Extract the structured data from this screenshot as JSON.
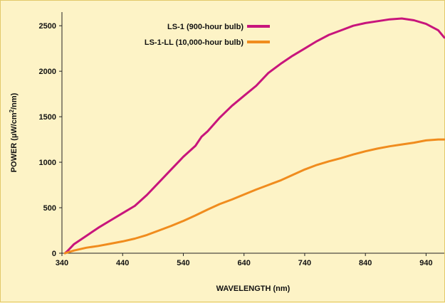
{
  "chart_data": {
    "type": "line",
    "xlabel": "WAVELENGTH (nm)",
    "ylabel": {
      "prefix": "POWER (µW/cm",
      "sup": "2",
      "suffix": "/nm)"
    },
    "xlim": [
      340,
      970
    ],
    "ylim": [
      0,
      2650
    ],
    "x_ticks": [
      340,
      440,
      540,
      640,
      740,
      840,
      940
    ],
    "y_ticks": [
      0,
      500,
      1000,
      1500,
      2000,
      2500
    ],
    "grid": false,
    "legend_position": "top-center",
    "series": [
      {
        "name": "LS-1 (900-hour bulb)",
        "color": "#c8157c",
        "x": [
          345,
          350,
          360,
          380,
          400,
          420,
          440,
          460,
          480,
          500,
          520,
          540,
          560,
          570,
          580,
          600,
          620,
          640,
          660,
          680,
          700,
          720,
          740,
          760,
          780,
          800,
          820,
          840,
          860,
          880,
          900,
          920,
          940,
          960,
          970
        ],
        "y": [
          0,
          30,
          100,
          190,
          280,
          360,
          440,
          520,
          640,
          780,
          920,
          1060,
          1180,
          1280,
          1340,
          1490,
          1620,
          1730,
          1840,
          1980,
          2080,
          2170,
          2250,
          2330,
          2400,
          2450,
          2500,
          2530,
          2550,
          2570,
          2580,
          2560,
          2520,
          2450,
          2370
        ]
      },
      {
        "name": "LS-1-LL (10,000-hour bulb)",
        "color": "#f08c1e",
        "x": [
          345,
          350,
          360,
          380,
          400,
          420,
          440,
          460,
          480,
          500,
          520,
          540,
          560,
          580,
          600,
          620,
          640,
          660,
          680,
          700,
          720,
          740,
          760,
          780,
          800,
          820,
          840,
          860,
          880,
          900,
          920,
          940,
          960,
          970
        ],
        "y": [
          0,
          10,
          30,
          60,
          80,
          105,
          130,
          160,
          200,
          250,
          300,
          355,
          415,
          480,
          540,
          590,
          645,
          700,
          750,
          800,
          860,
          920,
          970,
          1010,
          1045,
          1085,
          1120,
          1150,
          1175,
          1195,
          1215,
          1240,
          1250,
          1250
        ]
      }
    ]
  }
}
